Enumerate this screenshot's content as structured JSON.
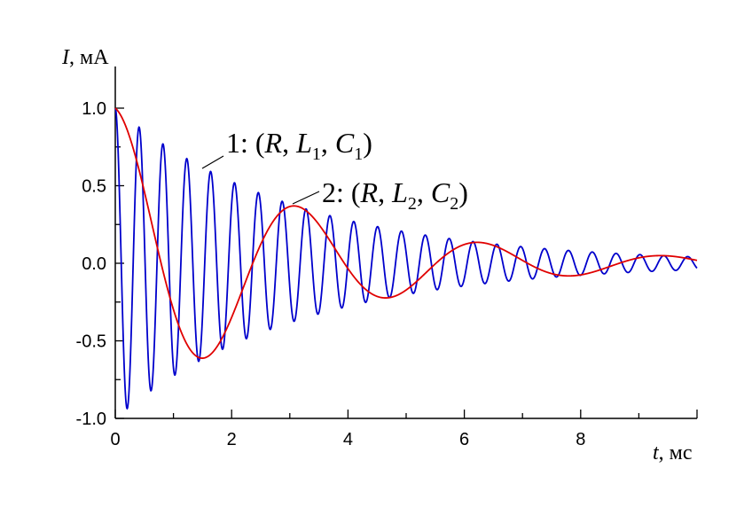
{
  "chart_data": {
    "type": "line",
    "title": "",
    "ylabel": {
      "var": "I",
      "unit": ", мА"
    },
    "xlabel": {
      "var": "t",
      "unit": ", мс"
    },
    "xlim": [
      0,
      10
    ],
    "ylim": [
      -1.0,
      1.0
    ],
    "xticks": [
      "0",
      "2",
      "4",
      "6",
      "8"
    ],
    "yticks": [
      "1.0",
      "0.5",
      "0.0",
      "-0.5",
      "-1.0"
    ],
    "series": [
      {
        "name": "1: (R, L1, C1)",
        "color": "#0000cc",
        "model": "damped_cosine",
        "amplitude": 1.0,
        "decay_per_ms": 0.32,
        "period_ms": 0.41
      },
      {
        "name": "2: (R, L2, C2)",
        "color": "#e00000",
        "model": "damped_cosine",
        "amplitude": 1.0,
        "decay_per_ms": 0.32,
        "period_ms": 3.15
      }
    ],
    "annotations": [
      {
        "series": 0,
        "parts": [
          "1: (",
          "R",
          ", ",
          "L",
          "1",
          ", ",
          "C",
          "1",
          ")"
        ]
      },
      {
        "series": 1,
        "parts": [
          "2: (",
          "R",
          ", ",
          "L",
          "2",
          ", ",
          "C",
          "2",
          ")"
        ]
      }
    ]
  }
}
